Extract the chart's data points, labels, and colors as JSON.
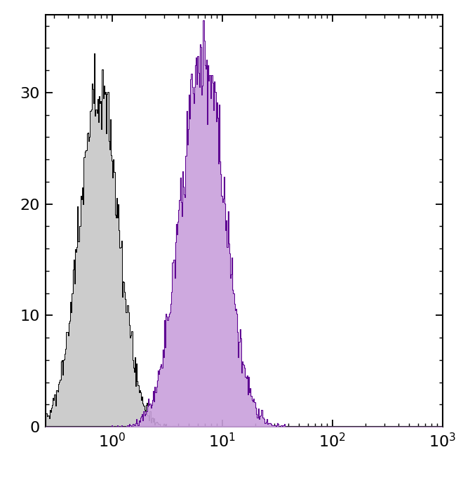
{
  "xlim": [
    0.25,
    1000
  ],
  "ylim": [
    0,
    37
  ],
  "yticks": [
    0,
    10,
    20,
    30
  ],
  "background_color": "#ffffff",
  "isotype_color": "#000000",
  "isotype_fill": "#cccccc",
  "antibody_color": "#5b0090",
  "antibody_fill": "#c9a0dc",
  "isotype_peak_log": -0.12,
  "isotype_peak_height": 33.5,
  "isotype_log_std": 0.18,
  "antibody_peak_log": 0.82,
  "antibody_peak_height": 36.5,
  "antibody_log_std": 0.2,
  "n_bins": 500,
  "n_samples": 20000,
  "seed": 7
}
